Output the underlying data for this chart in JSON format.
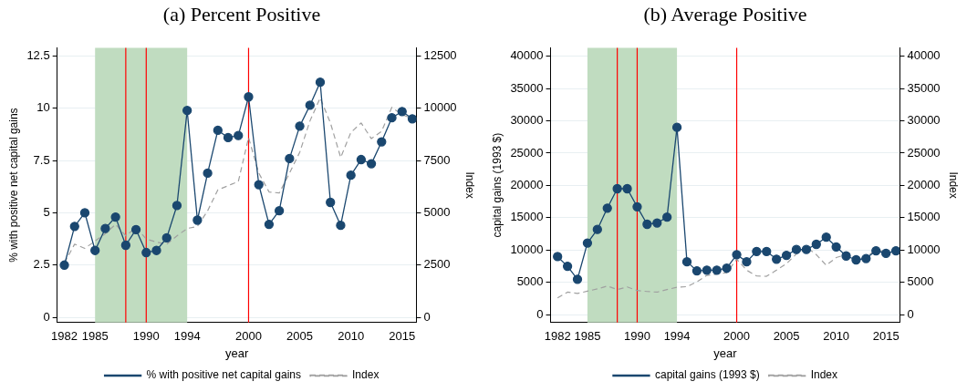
{
  "chart_data": [
    {
      "type": "line",
      "title": "(a) Percent Positive",
      "xlabel": "year",
      "ylabel": "% with positive net capital gains",
      "y2label": "Index",
      "x": [
        1982,
        1983,
        1984,
        1985,
        1986,
        1987,
        1988,
        1989,
        1990,
        1991,
        1992,
        1993,
        1994,
        1995,
        1996,
        1997,
        1998,
        1999,
        2000,
        2001,
        2002,
        2003,
        2004,
        2005,
        2006,
        2007,
        2008,
        2009,
        2010,
        2011,
        2012,
        2013,
        2014,
        2015,
        2016
      ],
      "series": [
        {
          "name": "% with positive net capital gains",
          "color": "#1a476f",
          "line_style": "solid",
          "values": [
            2.5,
            4.35,
            5.0,
            3.2,
            4.25,
            4.8,
            3.45,
            4.2,
            3.1,
            3.2,
            3.8,
            5.35,
            9.9,
            4.65,
            6.9,
            8.95,
            8.6,
            8.7,
            10.55,
            6.35,
            4.45,
            5.1,
            7.6,
            9.15,
            10.15,
            11.25,
            5.5,
            4.4,
            6.8,
            7.55,
            7.35,
            8.4,
            9.55,
            9.85,
            9.5
          ]
        },
        {
          "name": "Index",
          "color": "#a0a0a0",
          "marker": "none",
          "line_style": "dashed",
          "axis": "y2",
          "values": [
            2600,
            3500,
            3300,
            3650,
            4000,
            4450,
            3900,
            4300,
            3750,
            3600,
            3500,
            3900,
            4250,
            4350,
            5100,
            6100,
            6300,
            6500,
            8600,
            6900,
            6000,
            5950,
            6900,
            7900,
            9400,
            10500,
            9300,
            7650,
            8850,
            9300,
            8550,
            8900,
            10050,
            9700,
            9500
          ]
        }
      ],
      "xlim": [
        1981.3,
        2016.4
      ],
      "xticks": [
        1982,
        1985,
        1990,
        1994,
        2000,
        2005,
        2010,
        2015
      ],
      "ylim": [
        -0.25,
        12.9
      ],
      "yticks": [
        0,
        2.5,
        5,
        7.5,
        10,
        12.5
      ],
      "y2lim": [
        -250,
        12900
      ],
      "y2ticks": [
        0,
        2500,
        5000,
        7500,
        10000,
        12500
      ],
      "bands": [
        {
          "axis": "x",
          "from": 1985,
          "to": 1994,
          "color": "#c0dcc0"
        }
      ],
      "ref_lines": [
        {
          "axis": "x",
          "value": 1988,
          "color": "#ff0000"
        },
        {
          "axis": "x",
          "value": 1990,
          "color": "#ff0000"
        },
        {
          "axis": "x",
          "value": 2000,
          "color": "#ff0000"
        }
      ],
      "grid": "y",
      "legend": "bottom",
      "marker": "circle"
    },
    {
      "type": "line",
      "title": "(b) Average Positive",
      "xlabel": "year",
      "ylabel": "capital gains (1993 $)",
      "y2label": "Index",
      "x": [
        1982,
        1983,
        1984,
        1985,
        1986,
        1987,
        1988,
        1989,
        1990,
        1991,
        1992,
        1993,
        1994,
        1995,
        1996,
        1997,
        1998,
        1999,
        2000,
        2001,
        2002,
        2003,
        2004,
        2005,
        2006,
        2007,
        2008,
        2009,
        2010,
        2011,
        2012,
        2013,
        2014,
        2015,
        2016
      ],
      "series": [
        {
          "name": "capital gains (1993 $)",
          "color": "#1a476f",
          "line_style": "solid",
          "values": [
            9000,
            7500,
            5500,
            11100,
            13200,
            16500,
            19500,
            19500,
            16700,
            14000,
            14200,
            15100,
            29000,
            8200,
            6800,
            6900,
            6900,
            7200,
            9300,
            8200,
            9800,
            9800,
            8600,
            9200,
            10100,
            10100,
            10900,
            12000,
            10500,
            9100,
            8500,
            8700,
            9900,
            9500,
            9900
          ]
        },
        {
          "name": "Index",
          "color": "#a0a0a0",
          "marker": "none",
          "line_style": "dashed",
          "axis": "y2",
          "values": [
            2600,
            3500,
            3300,
            3650,
            4000,
            4450,
            3900,
            4300,
            3750,
            3600,
            3500,
            3900,
            4250,
            4350,
            5100,
            6100,
            6300,
            6500,
            8600,
            6900,
            6000,
            5950,
            6900,
            7900,
            9400,
            10500,
            9300,
            7650,
            8850,
            9300,
            8550,
            8900,
            10050,
            9700,
            9500
          ]
        }
      ],
      "xlim": [
        1981.3,
        2016.4
      ],
      "xticks": [
        1982,
        1985,
        1990,
        1994,
        2000,
        2005,
        2010,
        2015
      ],
      "ylim": [
        -1200,
        41300
      ],
      "yticks": [
        0,
        5000,
        10000,
        15000,
        20000,
        25000,
        30000,
        35000,
        40000
      ],
      "y2lim": [
        -1200,
        41300
      ],
      "y2ticks": [
        0,
        5000,
        10000,
        15000,
        20000,
        25000,
        30000,
        35000,
        40000
      ],
      "bands": [
        {
          "axis": "x",
          "from": 1985,
          "to": 1994,
          "color": "#c0dcc0"
        }
      ],
      "ref_lines": [
        {
          "axis": "x",
          "value": 1988,
          "color": "#ff0000"
        },
        {
          "axis": "x",
          "value": 1990,
          "color": "#ff0000"
        },
        {
          "axis": "x",
          "value": 2000,
          "color": "#ff0000"
        }
      ],
      "grid": "y",
      "legend": "bottom",
      "marker": "circle"
    }
  ]
}
